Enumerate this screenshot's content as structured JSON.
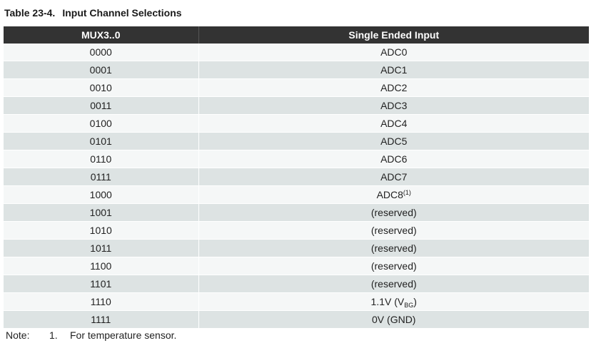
{
  "caption": {
    "number": "Table 23-4.",
    "title": "Input Channel Selections"
  },
  "table": {
    "headers": [
      "MUX3..0",
      "Single Ended Input"
    ],
    "rows": [
      {
        "mux": "0000",
        "input": "ADC0",
        "sup": "",
        "sub": "",
        "suffix": ""
      },
      {
        "mux": "0001",
        "input": "ADC1",
        "sup": "",
        "sub": "",
        "suffix": ""
      },
      {
        "mux": "0010",
        "input": "ADC2",
        "sup": "",
        "sub": "",
        "suffix": ""
      },
      {
        "mux": "0011",
        "input": "ADC3",
        "sup": "",
        "sub": "",
        "suffix": ""
      },
      {
        "mux": "0100",
        "input": "ADC4",
        "sup": "",
        "sub": "",
        "suffix": ""
      },
      {
        "mux": "0101",
        "input": "ADC5",
        "sup": "",
        "sub": "",
        "suffix": ""
      },
      {
        "mux": "0110",
        "input": "ADC6",
        "sup": "",
        "sub": "",
        "suffix": ""
      },
      {
        "mux": "0111",
        "input": "ADC7",
        "sup": "",
        "sub": "",
        "suffix": ""
      },
      {
        "mux": "1000",
        "input": "ADC8",
        "sup": "(1)",
        "sub": "",
        "suffix": ""
      },
      {
        "mux": "1001",
        "input": "(reserved)",
        "sup": "",
        "sub": "",
        "suffix": ""
      },
      {
        "mux": "1010",
        "input": "(reserved)",
        "sup": "",
        "sub": "",
        "suffix": ""
      },
      {
        "mux": "1011",
        "input": "(reserved)",
        "sup": "",
        "sub": "",
        "suffix": ""
      },
      {
        "mux": "1100",
        "input": "(reserved)",
        "sup": "",
        "sub": "",
        "suffix": ""
      },
      {
        "mux": "1101",
        "input": "(reserved)",
        "sup": "",
        "sub": "",
        "suffix": ""
      },
      {
        "mux": "1110",
        "input": "1.1V (V",
        "sup": "",
        "sub": "BG",
        "suffix": ")"
      },
      {
        "mux": "1111",
        "input": "0V (GND)",
        "sup": "",
        "sub": "",
        "suffix": ""
      }
    ]
  },
  "note": {
    "label": "Note:",
    "number": "1.",
    "text": "For temperature sensor."
  }
}
